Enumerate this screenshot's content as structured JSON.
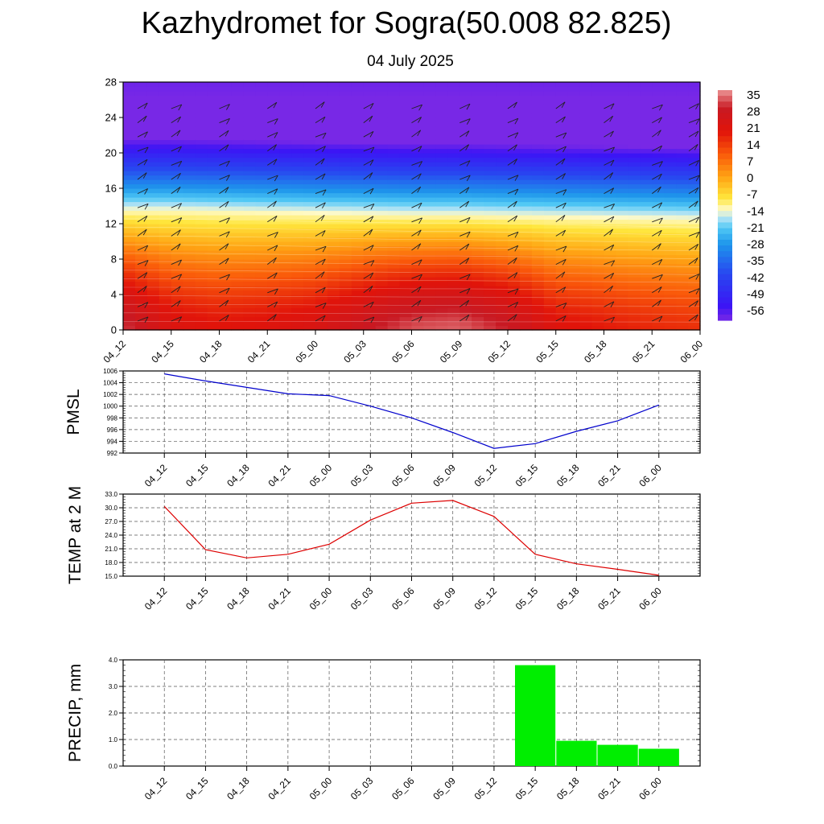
{
  "title": "Kazhydromet for Sogra(50.008 82.825)",
  "subtitle": "04 July 2025",
  "colors": {
    "pmsl_line": "#0000cc",
    "temp_line": "#dd0000",
    "precip_bar": "#00ee00",
    "grid": "#555555"
  },
  "chart_data": [
    {
      "type": "heatmap",
      "title": "",
      "categories": [
        "04_12",
        "04_15",
        "04_18",
        "04_21",
        "05_00",
        "05_03",
        "05_06",
        "05_09",
        "05_12",
        "05_15",
        "05_18",
        "05_21",
        "06_00"
      ],
      "y_ticks": [
        0,
        4,
        8,
        12,
        16,
        20,
        24,
        28
      ],
      "ylim": [
        0,
        28
      ],
      "colorbar_labels": [
        "35",
        "28",
        "21",
        "14",
        "7",
        "0",
        "-7",
        "-14",
        "-21",
        "-28",
        "-35",
        "-42",
        "-49",
        "-56"
      ],
      "colorbar_range": [
        -56,
        35
      ],
      "freezing_level": [
        13.5,
        13.5,
        13.4,
        13.3,
        13.2,
        13.1,
        13.0,
        13.0,
        12.9,
        12.8,
        12.7,
        12.6,
        12.5
      ],
      "surface_temp": [
        30,
        21,
        19,
        20,
        22,
        27,
        31,
        32,
        28,
        20,
        18,
        16,
        15
      ],
      "wind_barbs": true
    },
    {
      "type": "line",
      "ylabel": "PMSL",
      "categories": [
        "04_12",
        "04_15",
        "04_18",
        "04_21",
        "05_00",
        "05_03",
        "05_06",
        "05_09",
        "05_12",
        "05_15",
        "05_18",
        "05_21",
        "06_00"
      ],
      "values": [
        1005.5,
        1004.3,
        1003.2,
        1002.1,
        1001.8,
        1000.0,
        998.0,
        995.5,
        992.8,
        993.6,
        995.7,
        997.5,
        1000.2
      ],
      "ylim": [
        992,
        1006
      ],
      "yticks": [
        "992",
        "994",
        "996",
        "998",
        "1000",
        "1002",
        "1004",
        "1006"
      ],
      "grid": true
    },
    {
      "type": "line",
      "ylabel": "TEMP at 2 M",
      "categories": [
        "04_12",
        "04_15",
        "04_18",
        "04_21",
        "05_00",
        "05_03",
        "05_06",
        "05_09",
        "05_12",
        "05_15",
        "05_18",
        "05_21",
        "06_00"
      ],
      "values": [
        30.3,
        20.8,
        19.0,
        19.8,
        22.0,
        27.3,
        31.0,
        31.6,
        28.1,
        19.8,
        17.7,
        16.5,
        15.2
      ],
      "ylim": [
        15,
        33
      ],
      "yticks": [
        "15.0",
        "18.0",
        "21.0",
        "24.0",
        "27.0",
        "30.0",
        "33.0"
      ],
      "grid": true
    },
    {
      "type": "bar",
      "ylabel": "PRECIP, mm",
      "categories": [
        "04_12",
        "04_15",
        "04_18",
        "04_21",
        "05_00",
        "05_03",
        "05_06",
        "05_09",
        "05_12",
        "05_15",
        "05_18",
        "05_21",
        "06_00"
      ],
      "values": [
        0,
        0,
        0,
        0,
        0,
        0,
        0,
        0,
        0,
        3.8,
        0.95,
        0.8,
        0.65
      ],
      "ylim": [
        0,
        4
      ],
      "yticks": [
        "0.0",
        "1.0",
        "2.0",
        "3.0",
        "4.0"
      ],
      "grid": true
    }
  ]
}
